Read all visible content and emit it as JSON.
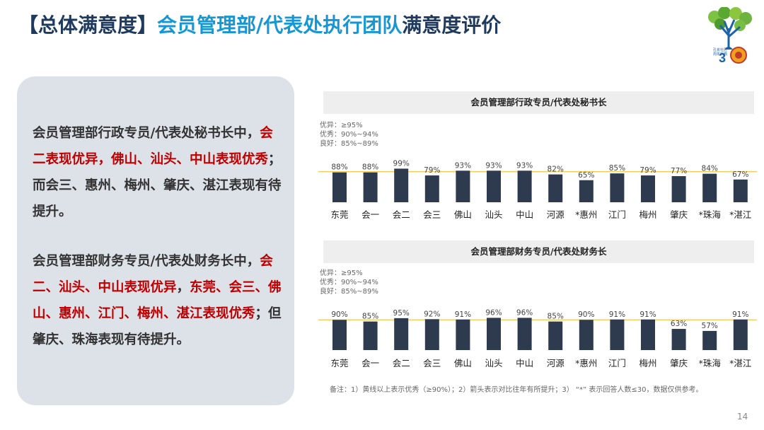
{
  "title": {
    "bracket_open": "【",
    "part1": "总体满意度",
    "bracket_close": "】",
    "part2": "会员管理部/代表处执行团队",
    "part3": "满意度评价"
  },
  "logo": {
    "line1": "孔雀社区",
    "line2": "周年庆典"
  },
  "summary": {
    "para1": {
      "intro": "会员管理部行政专员/代表处秘书长中，",
      "highlight": "会二表现优异，佛山、汕头、中山表现优秀",
      "outro": "；而会三、惠州、梅州、肇庆、湛江表现有待提升。"
    },
    "para2": {
      "intro": "会员管理部财务专员/代表处财务长中，",
      "highlight1": "会二、汕头、中山表现优异",
      "mid": "，",
      "highlight2": "东莞、会三、佛山、惠州、江门、梅州、湛江表现优秀",
      "outro": "；但肇庆、珠海表现有待提升。"
    }
  },
  "legend": {
    "excellent_plus": "优异：≥95%",
    "excellent": "优秀：90%~94%",
    "good": "良好：85%~89%"
  },
  "chart_data": [
    {
      "type": "bar",
      "title": "会员管理部行政专员/代表处秘书长",
      "categories": [
        "东莞",
        "会一",
        "会二",
        "会三",
        "佛山",
        "汕头",
        "中山",
        "河源",
        "*惠州",
        "江门",
        "梅州",
        "肇庆",
        "*珠海",
        "*湛江"
      ],
      "values": [
        88,
        88,
        99,
        79,
        93,
        93,
        93,
        82,
        65,
        85,
        79,
        77,
        84,
        67
      ],
      "value_labels": [
        "88%",
        "88%",
        "99%",
        "79%",
        "93%",
        "93%",
        "93%",
        "82%",
        "65%",
        "85%",
        "79%",
        "77%",
        "84%",
        "67%"
      ],
      "reference_line": 90,
      "ylim": [
        0,
        100
      ],
      "bar_color": "#2e3b4e",
      "reference_color": "#f2c744"
    },
    {
      "type": "bar",
      "title": "会员管理部财务专员/代表处财务长",
      "categories": [
        "东莞",
        "会一",
        "会二",
        "会三",
        "佛山",
        "汕头",
        "中山",
        "河源",
        "*惠州",
        "江门",
        "梅州",
        "肇庆",
        "*珠海",
        "*湛江"
      ],
      "values": [
        90,
        85,
        95,
        92,
        91,
        96,
        96,
        85,
        90,
        91,
        91,
        63,
        57,
        91
      ],
      "value_labels": [
        "90%",
        "85%",
        "95%",
        "92%",
        "91%",
        "96%",
        "96%",
        "85%",
        "90%",
        "91%",
        "91%",
        "63%",
        "57%",
        "91%"
      ],
      "reference_line": 90,
      "ylim": [
        0,
        100
      ],
      "bar_color": "#2e3b4e",
      "reference_color": "#f2c744"
    }
  ],
  "note": "备注：1）黄线以上表示优秀（≥90%）；2）箭头表示对比往年有所提升；3） “*” 表示回答人数≤30，数据仅供参考。",
  "page_number": "14"
}
